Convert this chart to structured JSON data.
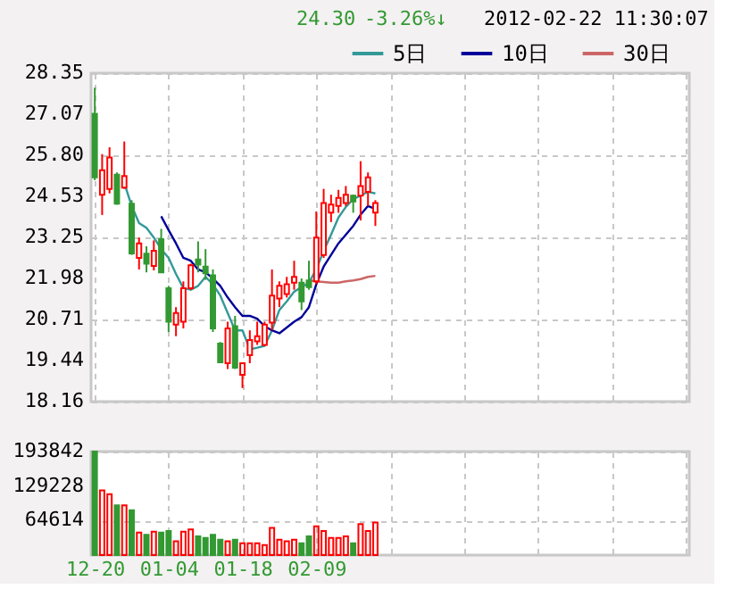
{
  "chart_data": [
    {
      "type": "candlestick",
      "annotations": [
        "24.30",
        "-3.26%↓",
        "2012-02-22 11:30:07"
      ],
      "categories": [
        null,
        null,
        null,
        null,
        null,
        null,
        null,
        null,
        null,
        null,
        null,
        null,
        null,
        null,
        null,
        null,
        null,
        null,
        null,
        null,
        null,
        null,
        null,
        null,
        null,
        null,
        null,
        null,
        null,
        null,
        null,
        null,
        null,
        null,
        null,
        null,
        null,
        null,
        null,
        null,
        null,
        null,
        null,
        null,
        null,
        null,
        null,
        null,
        null,
        null,
        null,
        null,
        null,
        null,
        null,
        null,
        null,
        null,
        null,
        null,
        null,
        null,
        null,
        null,
        null,
        null,
        null,
        null,
        null,
        null,
        null,
        null,
        null,
        null,
        null,
        null,
        null,
        null,
        null,
        null,
        null
      ],
      "ohlc": [
        [
          27.09,
          27.9,
          25.03,
          25.12
        ],
        [
          24.58,
          25.84,
          23.95,
          25.34
        ],
        [
          24.76,
          26.05,
          24.62,
          25.73
        ],
        [
          25.2,
          25.27,
          24.27,
          24.3
        ],
        [
          24.8,
          26.23,
          24.76,
          25.16
        ],
        [
          24.3,
          24.41,
          22.71,
          22.76
        ],
        [
          22.62,
          23.25,
          22.26,
          23.07
        ],
        [
          22.75,
          22.98,
          22.17,
          22.44
        ],
        [
          22.37,
          23.16,
          22.23,
          22.84
        ],
        [
          23.2,
          23.52,
          22.15,
          22.17
        ],
        [
          21.68,
          21.75,
          20.32,
          20.64
        ],
        [
          20.55,
          21.09,
          20.19,
          20.91
        ],
        [
          20.64,
          21.89,
          20.43,
          21.68
        ],
        [
          21.68,
          22.44,
          21.63,
          22.39
        ],
        [
          22.57,
          23.13,
          22.17,
          22.41
        ],
        [
          22.35,
          22.89,
          21.94,
          22.14
        ],
        [
          22.08,
          22.26,
          20.32,
          20.43
        ],
        [
          19.96,
          20.01,
          19.35,
          19.38
        ],
        [
          19.35,
          20.64,
          19.17,
          20.43
        ],
        [
          20.5,
          20.82,
          19.17,
          19.21
        ],
        [
          18.99,
          19.38,
          18.58,
          19.35
        ],
        [
          19.6,
          20.37,
          19.35,
          20.07
        ],
        [
          20.03,
          20.64,
          19.92,
          20.19
        ],
        [
          19.92,
          20.64,
          19.89,
          20.55
        ],
        [
          20.61,
          22.26,
          20.37,
          21.45
        ],
        [
          21.36,
          21.89,
          21.09,
          21.75
        ],
        [
          21.5,
          22.03,
          21.39,
          21.8
        ],
        [
          21.85,
          22.53,
          21.63,
          22.03
        ],
        [
          21.85,
          21.98,
          21.0,
          21.27
        ],
        [
          21.92,
          22.53,
          21.63,
          21.71
        ],
        [
          21.89,
          24.06,
          21.8,
          23.25
        ],
        [
          22.71,
          24.76,
          22.62,
          24.32
        ],
        [
          24.02,
          24.58,
          23.73,
          24.27
        ],
        [
          24.23,
          24.73,
          24.02,
          24.48
        ],
        [
          24.32,
          24.85,
          24.23,
          24.58
        ],
        [
          24.55,
          24.58,
          24.02,
          24.37
        ],
        [
          24.55,
          25.62,
          23.78,
          24.85
        ],
        [
          24.67,
          25.27,
          24.23,
          25.12
        ],
        [
          24.02,
          24.41,
          23.61,
          24.32
        ],
        null,
        null,
        null,
        null,
        null,
        null,
        null,
        null,
        null,
        null,
        null,
        null,
        null,
        null,
        null,
        null,
        null,
        null,
        null,
        null,
        null,
        null,
        null,
        null,
        null,
        null,
        null,
        null,
        null,
        null,
        null,
        null,
        null,
        null,
        null,
        null,
        null,
        null,
        null,
        null,
        null,
        null
      ],
      "colors": [
        "#339933",
        "#ff0000",
        "#ff0000",
        "#339933",
        "#ff0000",
        "#339933",
        "#ff0000",
        "#339933",
        "#ff0000",
        "#339933",
        "#339933",
        "#ff0000",
        "#ff0000",
        "#ff0000",
        "#339933",
        "#339933",
        "#339933",
        "#339933",
        "#ff0000",
        "#339933",
        "#ff0000",
        "#ff0000",
        "#ff0000",
        "#ff0000",
        "#ff0000",
        "#ff0000",
        "#ff0000",
        "#ff0000",
        "#339933",
        "#339933",
        "#ff0000",
        "#ff0000",
        "#ff0000",
        "#ff0000",
        "#ff0000",
        "#339933",
        "#ff0000",
        "#ff0000",
        "#ff0000",
        null,
        null,
        null,
        null,
        null,
        null,
        null,
        null,
        null,
        null,
        null,
        null,
        null,
        null,
        null,
        null,
        null,
        null,
        null,
        null,
        null,
        null,
        null,
        null,
        null,
        null,
        null,
        null,
        null,
        null,
        null,
        null,
        null,
        null,
        null,
        null,
        null,
        null,
        null,
        null,
        null,
        null
      ],
      "series": [
        {
          "name": "5日",
          "type": "line",
          "color": "#339999",
          "values": [
            null,
            null,
            null,
            null,
            24.94,
            24.23,
            23.7,
            23.55,
            23.25,
            22.89,
            22.62,
            22.12,
            21.68,
            21.63,
            21.75,
            22.03,
            21.8,
            21.45,
            20.91,
            20.37,
            20.37,
            19.78,
            19.83,
            19.89,
            20.37,
            21.0,
            21.27,
            21.57,
            21.71,
            21.85,
            22.26,
            22.84,
            23.34,
            23.87,
            24.2,
            24.44,
            24.55,
            24.67,
            24.62,
            null,
            null,
            null,
            null,
            null,
            null,
            null,
            null,
            null,
            null,
            null,
            null,
            null,
            null,
            null,
            null,
            null,
            null,
            null,
            null,
            null,
            null,
            null,
            null,
            null,
            null,
            null,
            null,
            null,
            null,
            null,
            null,
            null,
            null,
            null,
            null,
            null,
            null,
            null,
            null,
            null,
            null
          ]
        },
        {
          "name": "10日",
          "type": "line",
          "color": "#000099",
          "values": [
            null,
            null,
            null,
            null,
            null,
            null,
            null,
            null,
            null,
            23.91,
            23.48,
            23.07,
            22.62,
            22.53,
            22.26,
            22.17,
            21.98,
            21.75,
            21.39,
            21.09,
            20.82,
            20.82,
            20.73,
            20.5,
            20.37,
            20.28,
            20.46,
            20.64,
            20.78,
            21.09,
            21.8,
            22.35,
            22.71,
            23.07,
            23.34,
            23.61,
            23.96,
            24.23,
            24.14,
            null,
            null,
            null,
            null,
            null,
            null,
            null,
            null,
            null,
            null,
            null,
            null,
            null,
            null,
            null,
            null,
            null,
            null,
            null,
            null,
            null,
            null,
            null,
            null,
            null,
            null,
            null,
            null,
            null,
            null,
            null,
            null,
            null,
            null,
            null,
            null,
            null,
            null,
            null,
            null,
            null,
            null
          ]
        },
        {
          "name": "30日",
          "type": "line",
          "color": "#cc6666",
          "values": [
            null,
            null,
            null,
            null,
            null,
            null,
            null,
            null,
            null,
            null,
            null,
            null,
            null,
            null,
            null,
            null,
            null,
            null,
            null,
            null,
            null,
            null,
            null,
            null,
            null,
            null,
            null,
            null,
            null,
            21.92,
            21.89,
            21.87,
            21.85,
            21.85,
            21.89,
            21.92,
            21.96,
            22.03,
            22.06,
            null,
            null,
            null,
            null,
            null,
            null,
            null,
            null,
            null,
            null,
            null,
            null,
            null,
            null,
            null,
            null,
            null,
            null,
            null,
            null,
            null,
            null,
            null,
            null,
            null,
            null,
            null,
            null,
            null,
            null,
            null,
            null,
            null,
            null,
            null,
            null,
            null,
            null,
            null,
            null,
            null,
            null
          ]
        }
      ],
      "ylim": [
        18.16,
        28.35
      ],
      "yticks": [
        18.16,
        19.44,
        20.71,
        21.98,
        23.25,
        24.53,
        {
          "value": 25.8,
          "label": "25.80"
        },
        27.07,
        28.35
      ],
      "grid": true,
      "legend": "top right",
      "tick_labels": "y"
    },
    {
      "type": "bar",
      "categories": [
        "12-20",
        null,
        null,
        null,
        null,
        null,
        null,
        null,
        null,
        null,
        "01-04",
        null,
        null,
        null,
        null,
        null,
        null,
        null,
        null,
        null,
        "01-18",
        null,
        null,
        null,
        null,
        null,
        null,
        null,
        null,
        null,
        "02-09",
        null,
        null,
        null,
        null,
        null,
        null,
        null,
        null,
        null,
        null,
        null,
        null,
        null,
        null,
        null,
        null,
        null,
        null,
        null,
        null,
        null,
        null,
        null,
        null,
        null,
        null,
        null,
        null,
        null,
        null,
        null,
        null,
        null,
        null,
        null,
        null,
        null,
        null,
        null,
        null,
        null,
        null,
        null,
        null,
        null,
        null,
        null,
        null,
        null,
        null
      ],
      "values": [
        193842,
        121000,
        114000,
        93000,
        93000,
        84000,
        42000,
        38000,
        44000,
        42000,
        45000,
        26000,
        44000,
        48000,
        35000,
        32000,
        38000,
        29000,
        26000,
        29000,
        22000,
        22000,
        22000,
        19000,
        51000,
        29000,
        26000,
        29000,
        22000,
        35000,
        54000,
        45000,
        32000,
        32000,
        35000,
        22000,
        58000,
        45000,
        61000,
        null,
        null,
        null,
        null,
        null,
        null,
        null,
        null,
        null,
        null,
        null,
        null,
        null,
        null,
        null,
        null,
        null,
        null,
        null,
        null,
        null,
        null,
        null,
        null,
        null,
        null,
        null,
        null,
        null,
        null,
        null,
        null,
        null,
        null,
        null,
        null,
        null,
        null,
        null,
        null,
        null,
        null
      ],
      "colors": [
        "#339933",
        "#ff0000",
        "#ff0000",
        "#339933",
        "#ff0000",
        "#339933",
        "#ff0000",
        "#339933",
        "#ff0000",
        "#339933",
        "#339933",
        "#ff0000",
        "#ff0000",
        "#ff0000",
        "#339933",
        "#339933",
        "#339933",
        "#339933",
        "#ff0000",
        "#339933",
        "#ff0000",
        "#ff0000",
        "#ff0000",
        "#ff0000",
        "#ff0000",
        "#ff0000",
        "#ff0000",
        "#ff0000",
        "#339933",
        "#339933",
        "#ff0000",
        "#ff0000",
        "#ff0000",
        "#ff0000",
        "#ff0000",
        "#339933",
        "#ff0000",
        "#ff0000",
        "#ff0000",
        null,
        null,
        null,
        null,
        null,
        null,
        null,
        null,
        null,
        null,
        null,
        null,
        null,
        null,
        null,
        null,
        null,
        null,
        null,
        null,
        null,
        null,
        null,
        null,
        null,
        null,
        null,
        null,
        null,
        null,
        null,
        null,
        null,
        null,
        null,
        null,
        null,
        null,
        null,
        null,
        null,
        null
      ],
      "ylim": [
        0,
        193842
      ],
      "yticks": [
        64614,
        129228,
        193842
      ],
      "grid": true
    }
  ]
}
